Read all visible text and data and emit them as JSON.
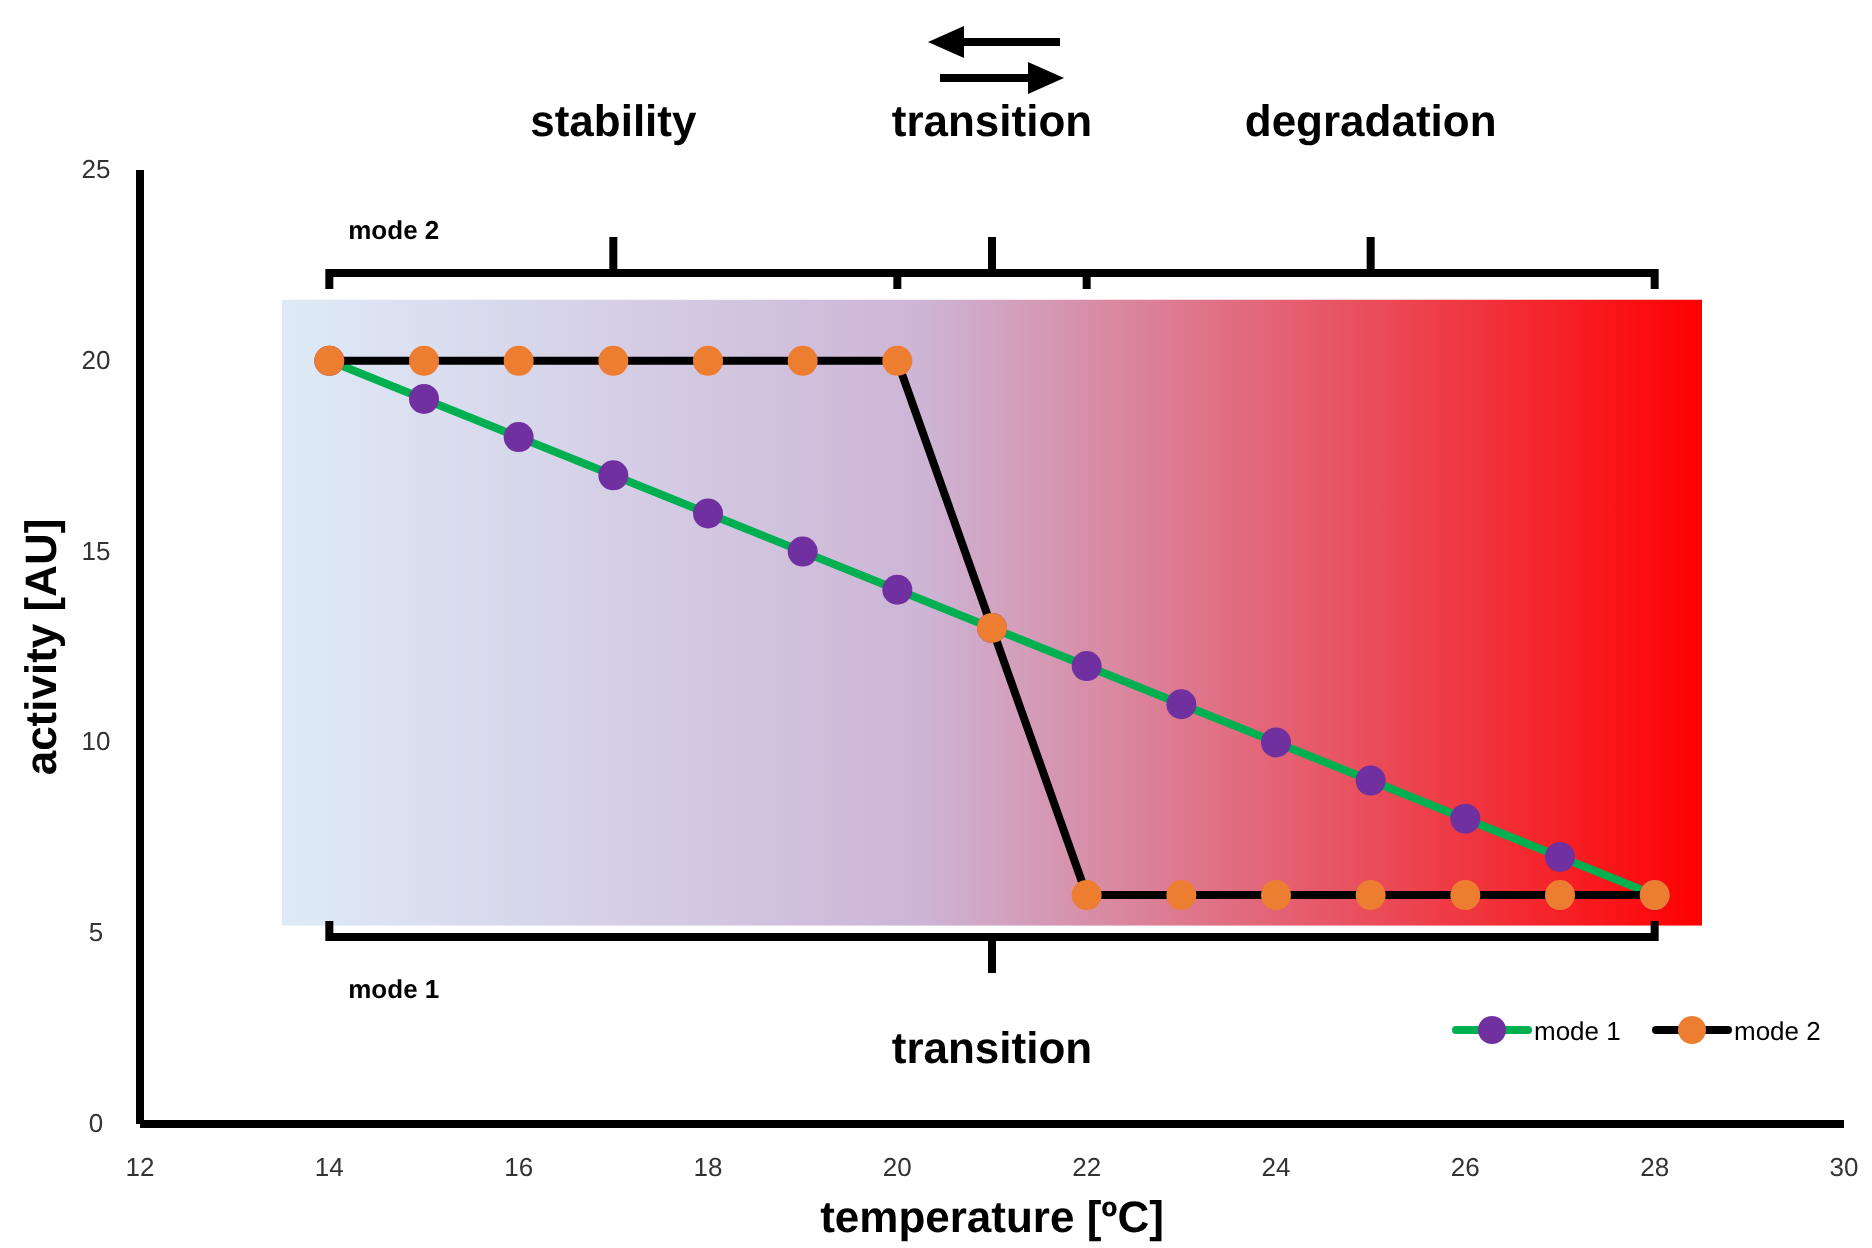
{
  "chart_data": {
    "type": "line",
    "xlabel": "temperature [ºC]",
    "ylabel": "activity [AU]",
    "x": [
      14,
      15,
      16,
      17,
      18,
      19,
      20,
      21,
      22,
      23,
      24,
      25,
      26,
      27,
      28
    ],
    "series": [
      {
        "name": "mode 1",
        "color": "#00b050",
        "colors": [
          "#7030a0",
          "#7030a0",
          "#7030a0",
          "#7030a0",
          "#7030a0",
          "#7030a0",
          "#7030a0",
          "#7030a0",
          "#7030a0",
          "#7030a0",
          "#7030a0",
          "#7030a0",
          "#7030a0",
          "#7030a0",
          "#7030a0"
        ],
        "values": [
          20,
          19,
          18,
          17,
          16,
          15,
          14,
          13,
          12,
          11,
          10,
          9,
          8,
          7,
          6
        ]
      },
      {
        "name": "mode 2",
        "color": "#000000",
        "colors": [
          "#ed7d31",
          "#ed7d31",
          "#ed7d31",
          "#ed7d31",
          "#ed7d31",
          "#ed7d31",
          "#ed7d31",
          "#ed7d31",
          "#ed7d31",
          "#ed7d31",
          "#ed7d31",
          "#ed7d31",
          "#ed7d31",
          "#ed7d31",
          "#ed7d31"
        ],
        "values": [
          20,
          20,
          20,
          20,
          20,
          20,
          20,
          13,
          6,
          6,
          6,
          6,
          6,
          6,
          6
        ]
      }
    ],
    "xlim": [
      12,
      30
    ],
    "xticks": [
      12,
      14,
      16,
      18,
      20,
      22,
      24,
      26,
      28,
      30
    ],
    "ylim": [
      0,
      25
    ],
    "yticks": [
      0,
      5,
      10,
      15,
      20,
      25
    ],
    "grid": false,
    "legend": "bottom right",
    "marker": "circle",
    "line_style": "solid",
    "annotations": [
      "stability",
      "transition",
      "degradation",
      "mode 2",
      "mode 1",
      "transition"
    ]
  }
}
